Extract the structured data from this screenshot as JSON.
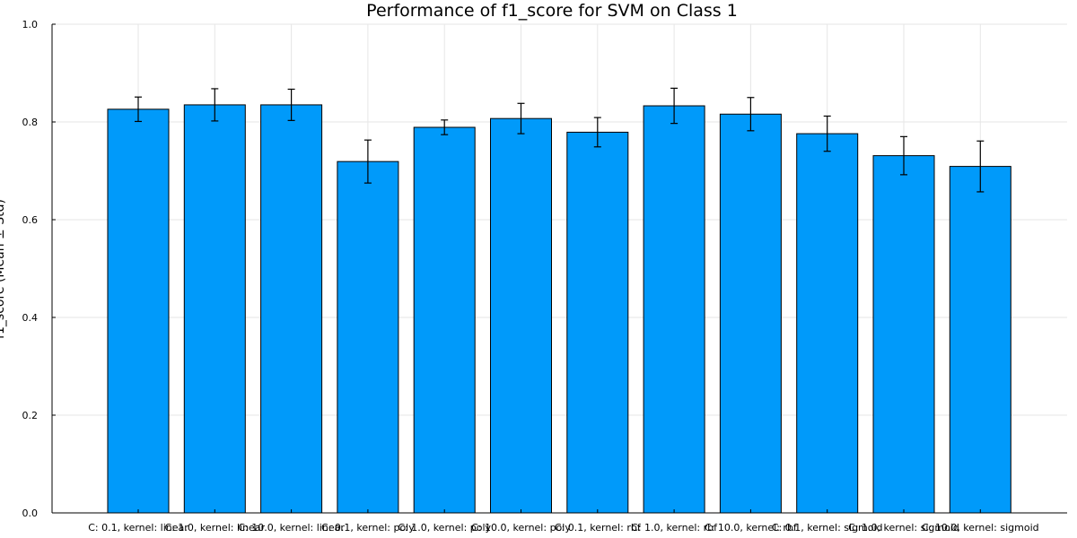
{
  "chart_data": {
    "type": "bar",
    "title": "Performance of f1_score for SVM on Class 1",
    "xlabel": "",
    "ylabel": "f1_score (Mean ± Std)",
    "ylim": [
      0,
      1.0
    ],
    "yticks": [
      "0.0",
      "0.2",
      "0.4",
      "0.6",
      "0.8",
      "1.0"
    ],
    "grid": true,
    "bar_color": "#009AFA",
    "categories": [
      "C: 0.1, kernel: linear",
      "C: 1.0, kernel: linear",
      "C: 10.0, kernel: linear",
      "C: 0.1, kernel: poly",
      "C: 1.0, kernel: poly",
      "C: 10.0, kernel: poly",
      "C: 0.1, kernel: rbf",
      "C: 1.0, kernel: rbf",
      "C: 10.0, kernel: rbf",
      "C: 0.1, kernel: sigmoid",
      "C: 1.0, kernel: sigmoid",
      "C: 10.0, kernel: sigmoid"
    ],
    "values": [
      0.826,
      0.835,
      0.835,
      0.719,
      0.789,
      0.807,
      0.779,
      0.833,
      0.816,
      0.776,
      0.731,
      0.709
    ],
    "errors": [
      0.025,
      0.033,
      0.032,
      0.044,
      0.015,
      0.031,
      0.03,
      0.036,
      0.034,
      0.036,
      0.039,
      0.052
    ]
  }
}
